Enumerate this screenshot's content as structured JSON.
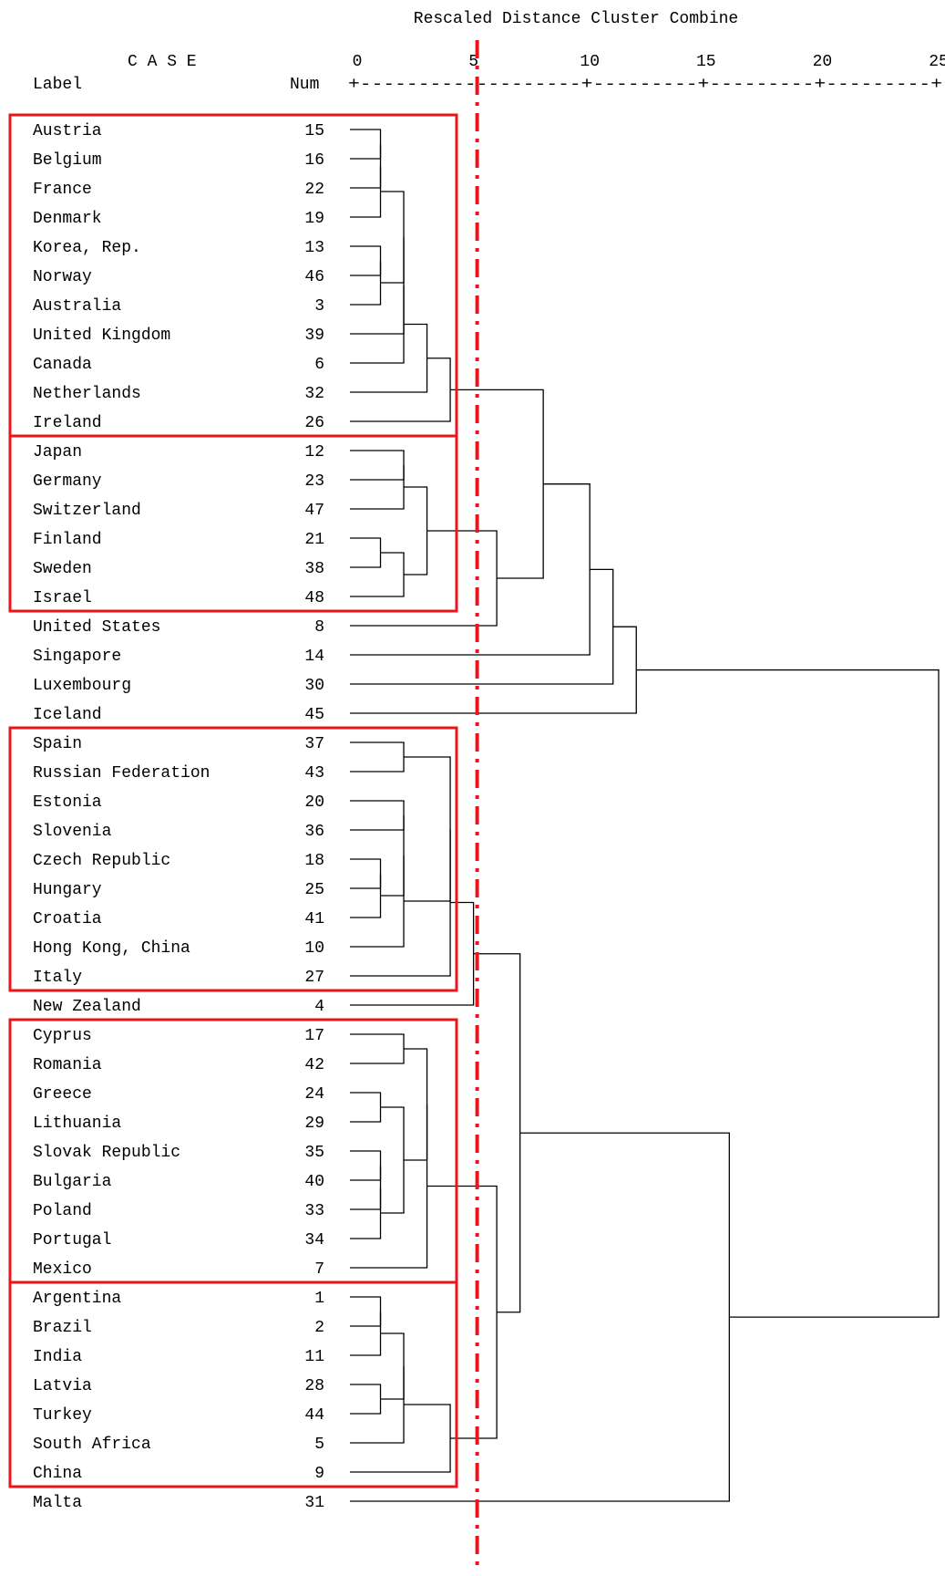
{
  "chart_data": {
    "type": "dendrogram",
    "title": "Rescaled Distance Cluster Combine",
    "case_header": "C A S E",
    "label_header": "Label",
    "num_header": "Num",
    "axis_ticks": [
      0,
      5,
      10,
      15,
      20,
      25
    ],
    "axis_rule": "+-------------------+---------+---------+---------+",
    "xlim": [
      0,
      25
    ],
    "cut_distance": 5,
    "cut_color": "#e8161b",
    "box_color": "#e8161b",
    "cases": [
      {
        "label": "Austria",
        "num": "15"
      },
      {
        "label": "Belgium",
        "num": "16"
      },
      {
        "label": "France",
        "num": "22"
      },
      {
        "label": "Denmark",
        "num": "19"
      },
      {
        "label": "Korea, Rep.",
        "num": "13"
      },
      {
        "label": "Norway",
        "num": "46"
      },
      {
        "label": "Australia",
        "num": "3"
      },
      {
        "label": "United Kingdom",
        "num": "39"
      },
      {
        "label": "Canada",
        "num": "6"
      },
      {
        "label": "Netherlands",
        "num": "32"
      },
      {
        "label": "Ireland",
        "num": "26"
      },
      {
        "label": "Japan",
        "num": "12"
      },
      {
        "label": "Germany",
        "num": "23"
      },
      {
        "label": "Switzerland",
        "num": "47"
      },
      {
        "label": "Finland",
        "num": "21"
      },
      {
        "label": "Sweden",
        "num": "38"
      },
      {
        "label": "Israel",
        "num": "48"
      },
      {
        "label": "United States",
        "num": "8"
      },
      {
        "label": "Singapore",
        "num": "14"
      },
      {
        "label": "Luxembourg",
        "num": "30"
      },
      {
        "label": "Iceland",
        "num": "45"
      },
      {
        "label": "Spain",
        "num": "37"
      },
      {
        "label": "Russian Federation",
        "num": "43"
      },
      {
        "label": "Estonia",
        "num": "20"
      },
      {
        "label": "Slovenia",
        "num": "36"
      },
      {
        "label": "Czech Republic",
        "num": "18"
      },
      {
        "label": "Hungary",
        "num": "25"
      },
      {
        "label": "Croatia",
        "num": "41"
      },
      {
        "label": "Hong Kong, China",
        "num": "10"
      },
      {
        "label": "Italy",
        "num": "27"
      },
      {
        "label": "New Zealand",
        "num": "4"
      },
      {
        "label": "Cyprus",
        "num": "17"
      },
      {
        "label": "Romania",
        "num": "42"
      },
      {
        "label": "Greece",
        "num": "24"
      },
      {
        "label": "Lithuania",
        "num": "29"
      },
      {
        "label": "Slovak Republic",
        "num": "35"
      },
      {
        "label": "Bulgaria",
        "num": "40"
      },
      {
        "label": "Poland",
        "num": "33"
      },
      {
        "label": "Portugal",
        "num": "34"
      },
      {
        "label": "Mexico",
        "num": "7"
      },
      {
        "label": "Argentina",
        "num": "1"
      },
      {
        "label": "Brazil",
        "num": "2"
      },
      {
        "label": "India",
        "num": "11"
      },
      {
        "label": "Latvia",
        "num": "28"
      },
      {
        "label": "Turkey",
        "num": "44"
      },
      {
        "label": "South Africa",
        "num": "5"
      },
      {
        "label": "China",
        "num": "9"
      },
      {
        "label": "Malta",
        "num": "31"
      }
    ],
    "merges": [
      {
        "left": "Austria",
        "right": "Belgium",
        "distance": 1
      },
      {
        "left": "Austria",
        "right": "France",
        "distance": 1
      },
      {
        "left": "Austria",
        "right": "Denmark",
        "distance": 1
      },
      {
        "left": "Korea, Rep.",
        "right": "Norway",
        "distance": 1
      },
      {
        "left": "Korea, Rep.",
        "right": "Australia",
        "distance": 1
      },
      {
        "left": "Austria",
        "right": "Korea, Rep.",
        "distance": 2
      },
      {
        "left": "Austria",
        "right": "United Kingdom",
        "distance": 2
      },
      {
        "left": "Austria",
        "right": "Canada",
        "distance": 2
      },
      {
        "left": "Austria",
        "right": "Netherlands",
        "distance": 3
      },
      {
        "left": "Austria",
        "right": "Ireland",
        "distance": 4
      },
      {
        "left": "Finland",
        "right": "Sweden",
        "distance": 1
      },
      {
        "left": "Japan",
        "right": "Germany",
        "distance": 2
      },
      {
        "left": "Japan",
        "right": "Switzerland",
        "distance": 2
      },
      {
        "left": "Finland",
        "right": "Israel",
        "distance": 2
      },
      {
        "left": "Japan",
        "right": "Finland",
        "distance": 3
      },
      {
        "left": "Japan",
        "right": "United States",
        "distance": 6
      },
      {
        "left": "Austria",
        "right": "Japan",
        "distance": 8
      },
      {
        "left": "Austria",
        "right": "Singapore",
        "distance": 10
      },
      {
        "left": "Austria",
        "right": "Luxembourg",
        "distance": 11
      },
      {
        "left": "Austria",
        "right": "Iceland",
        "distance": 12
      },
      {
        "left": "Spain",
        "right": "Russian Federation",
        "distance": 2
      },
      {
        "left": "Czech Republic",
        "right": "Hungary",
        "distance": 1
      },
      {
        "left": "Czech Republic",
        "right": "Croatia",
        "distance": 1
      },
      {
        "left": "Estonia",
        "right": "Slovenia",
        "distance": 2
      },
      {
        "left": "Estonia",
        "right": "Czech Republic",
        "distance": 2
      },
      {
        "left": "Estonia",
        "right": "Hong Kong, China",
        "distance": 2
      },
      {
        "left": "Spain",
        "right": "Estonia",
        "distance": 4
      },
      {
        "left": "Spain",
        "right": "Italy",
        "distance": 4
      },
      {
        "left": "Spain",
        "right": "New Zealand",
        "distance": 5
      },
      {
        "left": "Cyprus",
        "right": "Romania",
        "distance": 2
      },
      {
        "left": "Greece",
        "right": "Lithuania",
        "distance": 1
      },
      {
        "left": "Slovak Republic",
        "right": "Bulgaria",
        "distance": 1
      },
      {
        "left": "Slovak Republic",
        "right": "Poland",
        "distance": 1
      },
      {
        "left": "Slovak Republic",
        "right": "Portugal",
        "distance": 1
      },
      {
        "left": "Greece",
        "right": "Slovak Republic",
        "distance": 2
      },
      {
        "left": "Cyprus",
        "right": "Greece",
        "distance": 3
      },
      {
        "left": "Cyprus",
        "right": "Mexico",
        "distance": 3
      },
      {
        "left": "Argentina",
        "right": "Brazil",
        "distance": 1
      },
      {
        "left": "Argentina",
        "right": "India",
        "distance": 1
      },
      {
        "left": "Latvia",
        "right": "Turkey",
        "distance": 1
      },
      {
        "left": "Argentina",
        "right": "Latvia",
        "distance": 2
      },
      {
        "left": "Argentina",
        "right": "South Africa",
        "distance": 2
      },
      {
        "left": "Argentina",
        "right": "China",
        "distance": 4
      },
      {
        "left": "Cyprus",
        "right": "Argentina",
        "distance": 6
      },
      {
        "left": "Spain",
        "right": "Cyprus",
        "distance": 7
      },
      {
        "left": "Spain",
        "right": "Malta",
        "distance": 16
      },
      {
        "left": "Austria",
        "right": "Spain",
        "distance": 25
      }
    ],
    "boxes": [
      {
        "first": "Austria",
        "last": "Ireland"
      },
      {
        "first": "Japan",
        "last": "Israel"
      },
      {
        "first": "Spain",
        "last": "Italy"
      },
      {
        "first": "Cyprus",
        "last": "Mexico"
      },
      {
        "first": "Argentina",
        "last": "China"
      }
    ]
  }
}
